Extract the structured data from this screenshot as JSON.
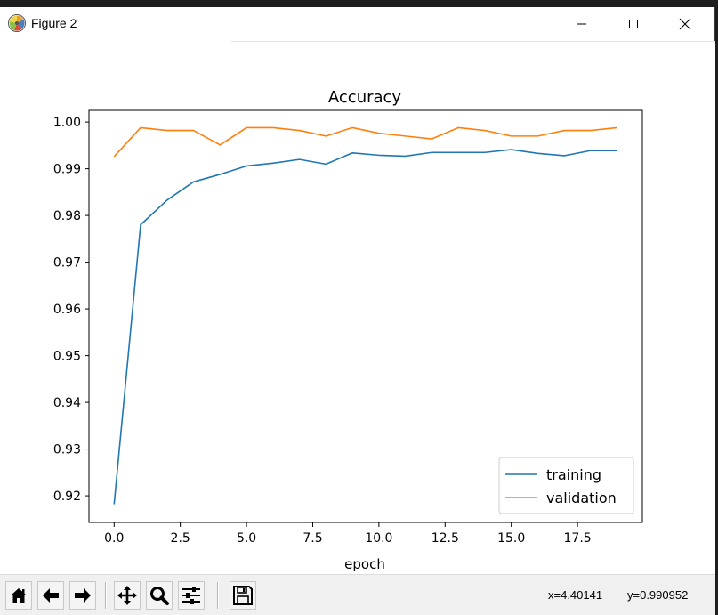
{
  "window": {
    "title": "Figure 2",
    "controls": [
      "minimize",
      "maximize",
      "close"
    ]
  },
  "toolbar": {
    "buttons": [
      "home-icon",
      "back-arrow-icon",
      "forward-arrow-icon",
      "pan-icon",
      "zoom-icon",
      "configure-subplots-icon",
      "save-icon"
    ],
    "coords_x": "x=4.40141",
    "coords_y": "y=0.990952"
  },
  "chart_data": {
    "type": "line",
    "title": "Accuracy",
    "xlabel": "epoch",
    "ylabel": "",
    "xlim": [
      -0.95,
      19.95
    ],
    "ylim": [
      0.9143,
      1.0025
    ],
    "xticks": [
      0.0,
      2.5,
      5.0,
      7.5,
      10.0,
      12.5,
      15.0,
      17.5
    ],
    "xtick_labels": [
      "0.0",
      "2.5",
      "5.0",
      "7.5",
      "10.0",
      "12.5",
      "15.0",
      "17.5"
    ],
    "yticks": [
      0.92,
      0.93,
      0.94,
      0.95,
      0.96,
      0.97,
      0.98,
      0.99,
      1.0
    ],
    "ytick_labels": [
      "0.92",
      "0.93",
      "0.94",
      "0.95",
      "0.96",
      "0.97",
      "0.98",
      "0.99",
      "1.00"
    ],
    "grid": false,
    "legend": "lower-right",
    "x": [
      0,
      1,
      2,
      3,
      4,
      5,
      6,
      7,
      8,
      9,
      10,
      11,
      12,
      13,
      14,
      15,
      16,
      17,
      18,
      19
    ],
    "series": [
      {
        "name": "training",
        "color": "#1f77b4",
        "values": [
          0.9182,
          0.978,
          0.9833,
          0.9872,
          0.9888,
          0.9906,
          0.9912,
          0.992,
          0.991,
          0.9934,
          0.9929,
          0.9927,
          0.9935,
          0.9935,
          0.9935,
          0.9941,
          0.9933,
          0.9928,
          0.9939,
          0.9939
        ]
      },
      {
        "name": "validation",
        "color": "#ff7f0e",
        "values": [
          0.9926,
          0.9988,
          0.9982,
          0.9982,
          0.9951,
          0.9988,
          0.9988,
          0.9982,
          0.997,
          0.9988,
          0.9976,
          0.997,
          0.9964,
          0.9988,
          0.9982,
          0.997,
          0.997,
          0.9982,
          0.9982,
          0.9988
        ]
      }
    ]
  }
}
